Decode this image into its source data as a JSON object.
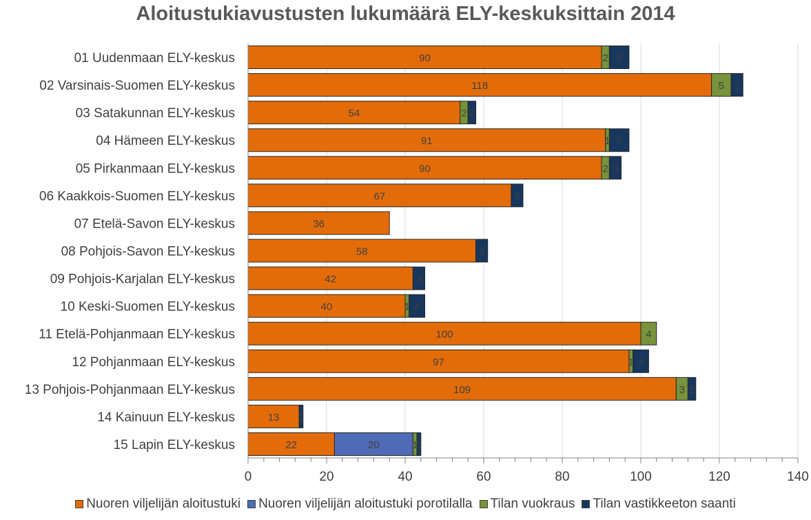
{
  "chart_data": {
    "type": "bar",
    "orientation": "horizontal",
    "stacked": true,
    "title": "Aloitustukiavustusten lukumäärä ELY-keskuksittain 2014",
    "categories": [
      "01 Uudenmaan ELY-keskus",
      "02 Varsinais-Suomen ELY-keskus",
      "03 Satakunnan ELY-keskus",
      "04 Hämeen ELY-keskus",
      "05 Pirkanmaan ELY-keskus",
      "06 Kaakkois-Suomen ELY-keskus",
      "07 Etelä-Savon ELY-keskus",
      "08 Pohjois-Savon ELY-keskus",
      "09 Pohjois-Karjalan ELY-keskus",
      "10 Keski-Suomen ELY-keskus",
      "11 Etelä-Pohjanmaan ELY-keskus",
      "12 Pohjanmaan ELY-keskus",
      "13 Pohjois-Pohjanmaan ELY-keskus",
      "14 Kainuun ELY-keskus",
      "15 Lapin ELY-keskus"
    ],
    "series": [
      {
        "name": "Nuoren viljelijän aloitustuki",
        "color": "#E36C09",
        "values": [
          90,
          118,
          54,
          91,
          90,
          67,
          36,
          58,
          42,
          40,
          100,
          97,
          109,
          13,
          22
        ]
      },
      {
        "name": "Nuoren viljelijän aloitustuki porotilalla",
        "color": "#4F6BB6",
        "values": [
          0,
          0,
          0,
          0,
          0,
          0,
          0,
          0,
          0,
          0,
          0,
          0,
          0,
          0,
          20
        ]
      },
      {
        "name": "Tilan vuokraus",
        "color": "#77933C",
        "values": [
          2,
          5,
          2,
          1,
          2,
          0,
          0,
          0,
          0,
          1,
          4,
          1,
          3,
          0,
          1
        ]
      },
      {
        "name": "Tilan vastikkeeton saanti",
        "color": "#17375E",
        "values": [
          5,
          3,
          2,
          5,
          3,
          3,
          0,
          3,
          3,
          4,
          0,
          4,
          2,
          1,
          1
        ]
      }
    ],
    "xlim": [
      0,
      140
    ],
    "xticks": [
      0,
      20,
      40,
      60,
      80,
      100,
      120,
      140
    ],
    "grid": true,
    "legend_position": "bottom"
  }
}
